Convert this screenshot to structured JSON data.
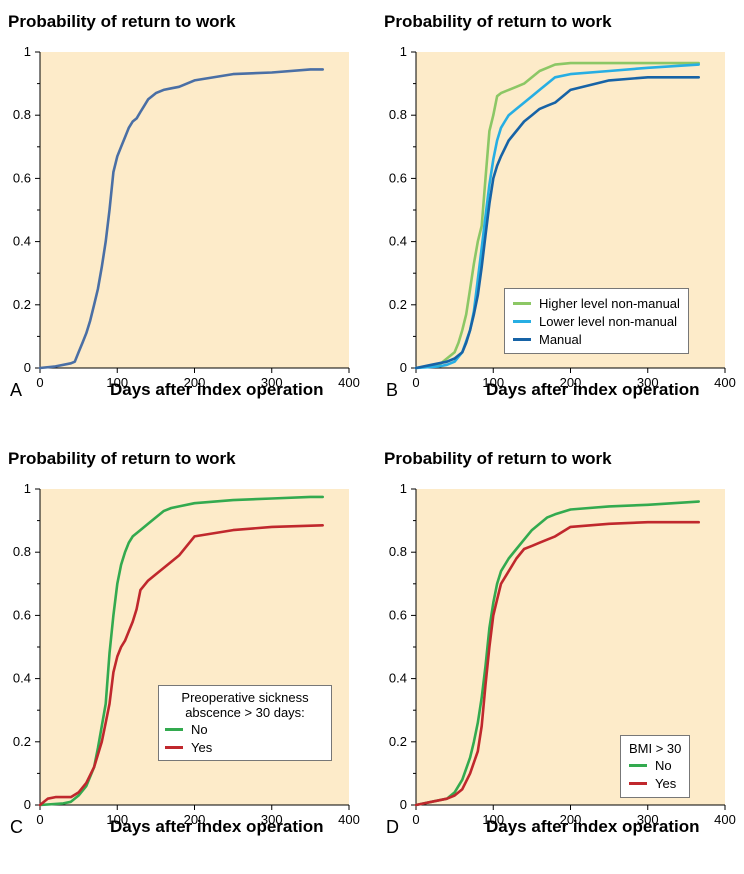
{
  "chart_data": [
    {
      "panel": "A",
      "type": "line",
      "title": "Probability of return to work",
      "xlabel": "Days after index operation",
      "ylabel": "",
      "xlim": [
        0,
        400
      ],
      "ylim": [
        0,
        1
      ],
      "xticks": [
        0,
        100,
        200,
        300,
        400
      ],
      "yticks": [
        0,
        0.2,
        0.4,
        0.6,
        0.8,
        1
      ],
      "ytick_labels": [
        "0",
        "0.2",
        "0.4",
        "0.6",
        "0.8",
        "1"
      ],
      "legend_title": "",
      "legend_position": "none",
      "series": [
        {
          "color": "#4a6fa5",
          "x": [
            0,
            20,
            40,
            45,
            50,
            55,
            60,
            65,
            70,
            75,
            80,
            85,
            90,
            95,
            100,
            105,
            110,
            115,
            120,
            125,
            130,
            135,
            140,
            150,
            160,
            170,
            180,
            200,
            250,
            300,
            350,
            366
          ],
          "y": [
            0,
            0.005,
            0.015,
            0.02,
            0.05,
            0.08,
            0.11,
            0.15,
            0.2,
            0.25,
            0.32,
            0.4,
            0.5,
            0.62,
            0.67,
            0.7,
            0.73,
            0.76,
            0.78,
            0.79,
            0.81,
            0.83,
            0.85,
            0.87,
            0.88,
            0.885,
            0.89,
            0.91,
            0.93,
            0.935,
            0.945,
            0.945
          ]
        }
      ]
    },
    {
      "panel": "B",
      "type": "line",
      "title": "Probability of return to work",
      "xlabel": "Days after index operation",
      "ylabel": "",
      "xlim": [
        0,
        400
      ],
      "ylim": [
        0,
        1
      ],
      "xticks": [
        0,
        100,
        200,
        300,
        400
      ],
      "yticks": [
        0,
        0.2,
        0.4,
        0.6,
        0.8,
        1
      ],
      "ytick_labels": [
        "0",
        "0.2",
        "0.4",
        "0.6",
        "0.8",
        "1"
      ],
      "legend_title": "",
      "legend_position": "bottom-right",
      "series": [
        {
          "name": "Higher level non-manual",
          "color": "#8cc765",
          "x": [
            0,
            30,
            40,
            50,
            55,
            60,
            65,
            70,
            75,
            80,
            85,
            90,
            95,
            100,
            105,
            110,
            120,
            130,
            140,
            150,
            160,
            170,
            180,
            200,
            250,
            300,
            366
          ],
          "y": [
            0,
            0.01,
            0.03,
            0.05,
            0.08,
            0.12,
            0.17,
            0.25,
            0.33,
            0.4,
            0.45,
            0.6,
            0.75,
            0.8,
            0.86,
            0.87,
            0.88,
            0.89,
            0.9,
            0.92,
            0.94,
            0.95,
            0.96,
            0.965,
            0.965,
            0.965,
            0.965
          ]
        },
        {
          "name": "Lower level non-manual",
          "color": "#27aee3",
          "x": [
            0,
            30,
            40,
            50,
            60,
            70,
            75,
            80,
            85,
            90,
            95,
            100,
            105,
            110,
            115,
            120,
            130,
            140,
            150,
            160,
            170,
            180,
            200,
            250,
            300,
            366
          ],
          "y": [
            0,
            0.005,
            0.01,
            0.02,
            0.05,
            0.12,
            0.18,
            0.28,
            0.38,
            0.48,
            0.58,
            0.66,
            0.72,
            0.76,
            0.78,
            0.8,
            0.82,
            0.84,
            0.86,
            0.88,
            0.9,
            0.92,
            0.93,
            0.94,
            0.95,
            0.96
          ]
        },
        {
          "name": "Manual",
          "color": "#1763a6",
          "x": [
            0,
            20,
            40,
            50,
            60,
            65,
            70,
            75,
            80,
            85,
            90,
            95,
            100,
            105,
            110,
            120,
            130,
            140,
            150,
            160,
            170,
            180,
            190,
            200,
            250,
            300,
            366
          ],
          "y": [
            0,
            0.01,
            0.02,
            0.03,
            0.05,
            0.08,
            0.12,
            0.17,
            0.23,
            0.32,
            0.42,
            0.52,
            0.6,
            0.64,
            0.67,
            0.72,
            0.75,
            0.78,
            0.8,
            0.82,
            0.83,
            0.84,
            0.86,
            0.88,
            0.91,
            0.92,
            0.92
          ]
        }
      ]
    },
    {
      "panel": "C",
      "type": "line",
      "title": "Probability of return to work",
      "xlabel": "Days after index operation",
      "ylabel": "",
      "xlim": [
        0,
        400
      ],
      "ylim": [
        0,
        1
      ],
      "xticks": [
        0,
        100,
        200,
        300,
        400
      ],
      "yticks": [
        0,
        0.2,
        0.4,
        0.6,
        0.8,
        1
      ],
      "ytick_labels": [
        "0",
        "0.2",
        "0.4",
        "0.6",
        "0.8",
        "1"
      ],
      "legend_title": "Preoperative sickness abscence > 30 days:",
      "legend_position": "bottom-right",
      "series": [
        {
          "name": "No",
          "color": "#33aa4f",
          "x": [
            0,
            30,
            40,
            50,
            60,
            70,
            75,
            80,
            85,
            90,
            95,
            100,
            105,
            110,
            115,
            120,
            130,
            140,
            150,
            160,
            170,
            180,
            200,
            250,
            300,
            350,
            366
          ],
          "y": [
            0,
            0.005,
            0.01,
            0.03,
            0.06,
            0.12,
            0.18,
            0.25,
            0.32,
            0.48,
            0.6,
            0.7,
            0.76,
            0.8,
            0.83,
            0.85,
            0.87,
            0.89,
            0.91,
            0.93,
            0.94,
            0.945,
            0.955,
            0.965,
            0.97,
            0.975,
            0.975
          ]
        },
        {
          "name": "Yes",
          "color": "#c0282d",
          "x": [
            0,
            10,
            20,
            40,
            50,
            60,
            70,
            80,
            85,
            90,
            95,
            100,
            105,
            110,
            120,
            125,
            130,
            140,
            150,
            160,
            170,
            180,
            200,
            250,
            300,
            366
          ],
          "y": [
            0,
            0.02,
            0.025,
            0.025,
            0.04,
            0.07,
            0.12,
            0.2,
            0.26,
            0.32,
            0.42,
            0.47,
            0.5,
            0.52,
            0.58,
            0.62,
            0.68,
            0.71,
            0.73,
            0.75,
            0.77,
            0.79,
            0.85,
            0.87,
            0.88,
            0.885
          ]
        }
      ]
    },
    {
      "panel": "D",
      "type": "line",
      "title": "Probability of return to work",
      "xlabel": "Days after index operation",
      "ylabel": "",
      "xlim": [
        0,
        400
      ],
      "ylim": [
        0,
        1
      ],
      "xticks": [
        0,
        100,
        200,
        300,
        400
      ],
      "yticks": [
        0,
        0.2,
        0.4,
        0.6,
        0.8,
        1
      ],
      "ytick_labels": [
        "0",
        "0.2",
        "0.4",
        "0.6",
        "0.8",
        "1"
      ],
      "legend_title": "BMI > 30",
      "legend_position": "bottom-right",
      "series": [
        {
          "name": "No",
          "color": "#33aa4f",
          "x": [
            0,
            20,
            40,
            50,
            60,
            70,
            75,
            80,
            85,
            90,
            95,
            100,
            105,
            110,
            120,
            130,
            140,
            150,
            160,
            170,
            180,
            200,
            250,
            300,
            366
          ],
          "y": [
            0,
            0.01,
            0.02,
            0.04,
            0.08,
            0.15,
            0.2,
            0.26,
            0.34,
            0.44,
            0.56,
            0.64,
            0.7,
            0.74,
            0.78,
            0.81,
            0.84,
            0.87,
            0.89,
            0.91,
            0.92,
            0.935,
            0.945,
            0.95,
            0.96
          ]
        },
        {
          "name": "Yes",
          "color": "#c0282d",
          "x": [
            0,
            20,
            40,
            50,
            60,
            70,
            80,
            85,
            90,
            95,
            100,
            105,
            110,
            120,
            130,
            140,
            150,
            160,
            170,
            180,
            200,
            250,
            300,
            366
          ],
          "y": [
            0,
            0.01,
            0.02,
            0.03,
            0.05,
            0.1,
            0.17,
            0.25,
            0.38,
            0.5,
            0.6,
            0.65,
            0.7,
            0.74,
            0.78,
            0.81,
            0.82,
            0.83,
            0.84,
            0.85,
            0.88,
            0.89,
            0.895,
            0.895
          ]
        }
      ]
    }
  ]
}
